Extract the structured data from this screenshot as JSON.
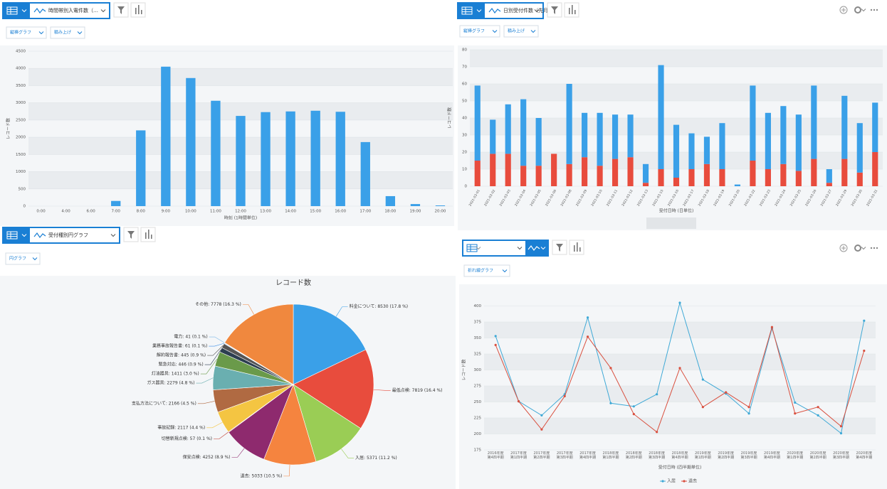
{
  "panels": [
    {
      "title": "時間帯別入電件数（…",
      "buttons": [
        "縦棒グラフ",
        "積み上げ"
      ]
    },
    {
      "title": "日別受付件数（先月）",
      "buttons": [
        "縦棒グラフ",
        "積み上げ"
      ]
    },
    {
      "title": "受付種別円グラフ",
      "buttons": [
        "円グラフ"
      ]
    },
    {
      "buttons": [
        "折れ線グラフ"
      ]
    }
  ],
  "chart_data": [
    {
      "type": "bar",
      "categories": [
        "0:00",
        "4:00",
        "6:00",
        "7:00",
        "8:00",
        "9:00",
        "10:00",
        "11:00",
        "12:00",
        "13:00",
        "14:00",
        "15:00",
        "16:00",
        "17:00",
        "18:00",
        "19:00",
        "20:00"
      ],
      "values": [
        0,
        0,
        0,
        150,
        2200,
        4050,
        3720,
        3060,
        2620,
        2730,
        2750,
        2770,
        2740,
        1860,
        290,
        60,
        20
      ],
      "color": "#3aa0e8",
      "ylim": [
        0,
        4500
      ],
      "yticks": [
        0,
        500,
        1000,
        1500,
        2000,
        2500,
        3000,
        3500,
        4000,
        4500
      ],
      "x_label": "時刻 (1時間単位)",
      "y_label": "レコード数",
      "grid": true
    },
    {
      "type": "bar",
      "stacked": true,
      "categories": [
        "2021-03-01",
        "2021-03-02",
        "2021-03-03",
        "2021-03-04",
        "2021-03-05",
        "2021-03-06",
        "2021-03-08",
        "2021-03-09",
        "2021-03-10",
        "2021-03-11",
        "2021-03-12",
        "2021-03-13",
        "2021-03-15",
        "2021-03-16",
        "2021-03-17",
        "2021-03-18",
        "2021-03-19",
        "2021-03-20",
        "2021-03-22",
        "2021-03-23",
        "2021-03-24",
        "2021-03-25",
        "2021-03-26",
        "2021-03-27",
        "2021-03-29",
        "2021-03-30",
        "2021-03-31"
      ],
      "series": [
        {
          "color": "#e84c3d",
          "values": [
            15,
            19,
            19,
            12,
            12,
            19,
            13,
            17,
            12,
            16,
            17,
            2,
            10,
            5,
            10,
            13,
            10,
            0,
            15,
            10,
            13,
            9,
            16,
            2,
            16,
            8,
            20
          ]
        },
        {
          "color": "#3aa0e8",
          "values": [
            44,
            20,
            29,
            39,
            28,
            0,
            47,
            26,
            31,
            26,
            25,
            11,
            61,
            31,
            21,
            16,
            27,
            1,
            44,
            33,
            34,
            33,
            43,
            8,
            37,
            29,
            29
          ]
        }
      ],
      "ylim": [
        0,
        80
      ],
      "yticks": [
        0,
        10,
        20,
        30,
        40,
        50,
        60,
        70,
        80
      ],
      "x_label": "受付日時 (日単位)",
      "y_label": "レコード数",
      "grid": true
    },
    {
      "type": "pie",
      "title": "レコード数",
      "categories": [
        "料金について: 8530 (17.8 %)",
        "最低点検: 7819 (16.4 %)",
        "入居: 5371 (11.2 %)",
        "退去: 5033 (10.5 %)",
        "保安点検: 4252 (8.9 %)",
        "切替新規点検: 57 (0.1 %)",
        "事故記録: 2117 (4.4 %)",
        "支払方法について: 2166 (4.5 %)",
        "ガス器具: 2279 (4.8 %)",
        "灯油器具: 1411 (3.0 %)",
        "緊急対応: 446 (0.9 %)",
        "解約報告書: 445 (0.9 %)",
        "業務事故報告書: 61 (0.1 %)",
        "電力: 41 (0.1 %)",
        "その他: 7778 (16.3 %)"
      ],
      "values": [
        8530,
        7819,
        5371,
        5033,
        4252,
        57,
        2117,
        2166,
        2279,
        1411,
        446,
        445,
        61,
        41,
        7778
      ],
      "colors": [
        "#3aa0e8",
        "#e84c3d",
        "#9acd55",
        "#f5843f",
        "#8e2a6e",
        "#c0392b",
        "#f4c542",
        "#b06a42",
        "#6aafb0",
        "#6a9a4a",
        "#2c3e50",
        "#555555",
        "#3a8ee8",
        "#7ab7e8",
        "#f0883e"
      ]
    },
    {
      "type": "line",
      "categories": [
        "2016年度第4四半期",
        "2017年度第1四半期",
        "2017年度第2四半期",
        "2017年度第3四半期",
        "2017年度第4四半期",
        "2018年度第1四半期",
        "2018年度第2四半期",
        "2018年度第3四半期",
        "2018年度第4四半期",
        "2019年度第1四半期",
        "2019年度第2四半期",
        "2019年度第3四半期",
        "2019年度第4四半期",
        "2020年度第1四半期",
        "2020年度第2四半期",
        "2020年度第3四半期",
        "2020年度第4四半期"
      ],
      "series": [
        {
          "name": "入居",
          "color": "#3fa9d6",
          "values": [
            353,
            251,
            229,
            262,
            382,
            248,
            243,
            262,
            405,
            285,
            263,
            232,
            365,
            249,
            229,
            201,
            377
          ]
        },
        {
          "name": "退去",
          "color": "#d9503f",
          "values": [
            339,
            251,
            207,
            259,
            352,
            303,
            231,
            203,
            303,
            242,
            265,
            242,
            367,
            232,
            242,
            212,
            330
          ]
        }
      ],
      "ylim": [
        175,
        425
      ],
      "yticks": [
        175,
        200,
        225,
        250,
        275,
        300,
        325,
        350,
        375,
        400
      ],
      "x_label": "受付日時 (四半期単位)",
      "y_label": "レコード数",
      "grid": true,
      "legend": "bottom"
    }
  ]
}
